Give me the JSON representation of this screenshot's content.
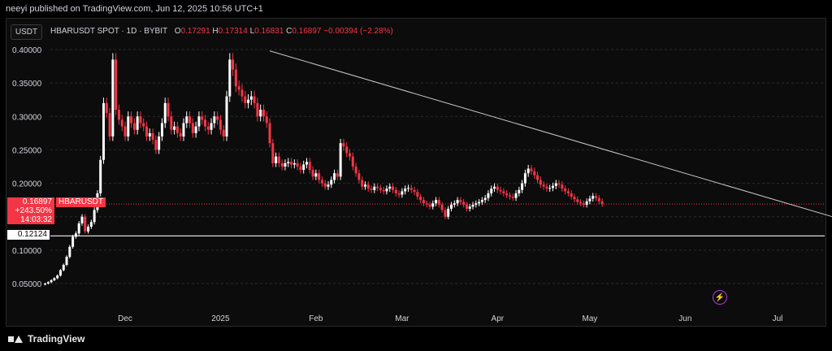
{
  "header": {
    "published": "neeyi published on TradingView.com, Jun 12, 2025 10:56 UTC+1"
  },
  "symbol_badge": "USDT",
  "ohlc": {
    "symbol": "HBARUSDT SPOT · 1D · BYBIT",
    "o_label": "O",
    "o": "0.17291",
    "h_label": "H",
    "h": "0.17314",
    "l_label": "L",
    "l": "0.16831",
    "c_label": "C",
    "c": "0.16897",
    "change": "−0.00394 (−2.28%)"
  },
  "price_tag": {
    "price": "0.16897",
    "change": "+243.50%",
    "countdown": "14:03:32",
    "symbol": "HBARUSDT"
  },
  "level_tag": "0.12124",
  "footer": {
    "brand": "TradingView"
  },
  "colors": {
    "up": "#ffffff",
    "down": "#f23645",
    "background": "#0c0c0c",
    "trendline": "#c8c8c8",
    "support": "#d9d9d9"
  },
  "chart_data": {
    "type": "candlestick",
    "interval": "1D",
    "ylim": [
      0.035,
      0.41
    ],
    "y_ticks": [
      "0.40000",
      "0.35000",
      "0.30000",
      "0.25000",
      "0.20000",
      "0.15000",
      "0.10000",
      "0.05000"
    ],
    "x_ticks": [
      {
        "label": "Dec",
        "date": "2024-12-01"
      },
      {
        "label": "2025",
        "date": "2025-01-01"
      },
      {
        "label": "Feb",
        "date": "2025-02-01"
      },
      {
        "label": "Mar",
        "date": "2025-03-01"
      },
      {
        "label": "Apr",
        "date": "2025-04-01"
      },
      {
        "label": "May",
        "date": "2025-05-01"
      },
      {
        "label": "Jun",
        "date": "2025-06-01"
      },
      {
        "label": "Jul",
        "date": "2025-07-01"
      }
    ],
    "start_date": "2024-11-05",
    "closes": [
      0.05,
      0.052,
      0.055,
      0.058,
      0.062,
      0.07,
      0.078,
      0.09,
      0.105,
      0.12,
      0.125,
      0.14,
      0.15,
      0.128,
      0.135,
      0.142,
      0.16,
      0.185,
      0.235,
      0.32,
      0.305,
      0.27,
      0.385,
      0.31,
      0.295,
      0.285,
      0.27,
      0.3,
      0.29,
      0.28,
      0.3,
      0.29,
      0.285,
      0.27,
      0.275,
      0.265,
      0.25,
      0.27,
      0.29,
      0.32,
      0.3,
      0.28,
      0.285,
      0.275,
      0.27,
      0.29,
      0.3,
      0.29,
      0.275,
      0.285,
      0.3,
      0.295,
      0.285,
      0.28,
      0.29,
      0.3,
      0.295,
      0.28,
      0.27,
      0.33,
      0.385,
      0.37,
      0.345,
      0.34,
      0.33,
      0.32,
      0.325,
      0.33,
      0.32,
      0.3,
      0.31,
      0.3,
      0.29,
      0.26,
      0.23,
      0.24,
      0.23,
      0.225,
      0.23,
      0.232,
      0.228,
      0.23,
      0.225,
      0.22,
      0.228,
      0.232,
      0.22,
      0.21,
      0.215,
      0.205,
      0.2,
      0.195,
      0.198,
      0.205,
      0.215,
      0.21,
      0.26,
      0.255,
      0.245,
      0.24,
      0.225,
      0.215,
      0.205,
      0.195,
      0.198,
      0.192,
      0.19,
      0.195,
      0.193,
      0.19,
      0.188,
      0.192,
      0.195,
      0.19,
      0.185,
      0.183,
      0.188,
      0.192,
      0.193,
      0.19,
      0.187,
      0.18,
      0.175,
      0.17,
      0.168,
      0.165,
      0.17,
      0.175,
      0.168,
      0.16,
      0.15,
      0.162,
      0.168,
      0.17,
      0.175,
      0.172,
      0.168,
      0.162,
      0.165,
      0.168,
      0.17,
      0.172,
      0.175,
      0.178,
      0.185,
      0.192,
      0.195,
      0.19,
      0.188,
      0.185,
      0.182,
      0.18,
      0.178,
      0.185,
      0.19,
      0.2,
      0.215,
      0.222,
      0.218,
      0.212,
      0.205,
      0.198,
      0.195,
      0.192,
      0.193,
      0.196,
      0.2,
      0.198,
      0.192,
      0.188,
      0.185,
      0.18,
      0.176,
      0.172,
      0.17,
      0.168,
      0.173,
      0.177,
      0.181,
      0.178,
      0.173,
      0.169
    ],
    "trendline": [
      {
        "date": "2025-01-17",
        "value": 0.398
      },
      {
        "date": "2025-07-21",
        "value": 0.147
      }
    ],
    "support_level": 0.12124,
    "last_price": 0.16897
  }
}
